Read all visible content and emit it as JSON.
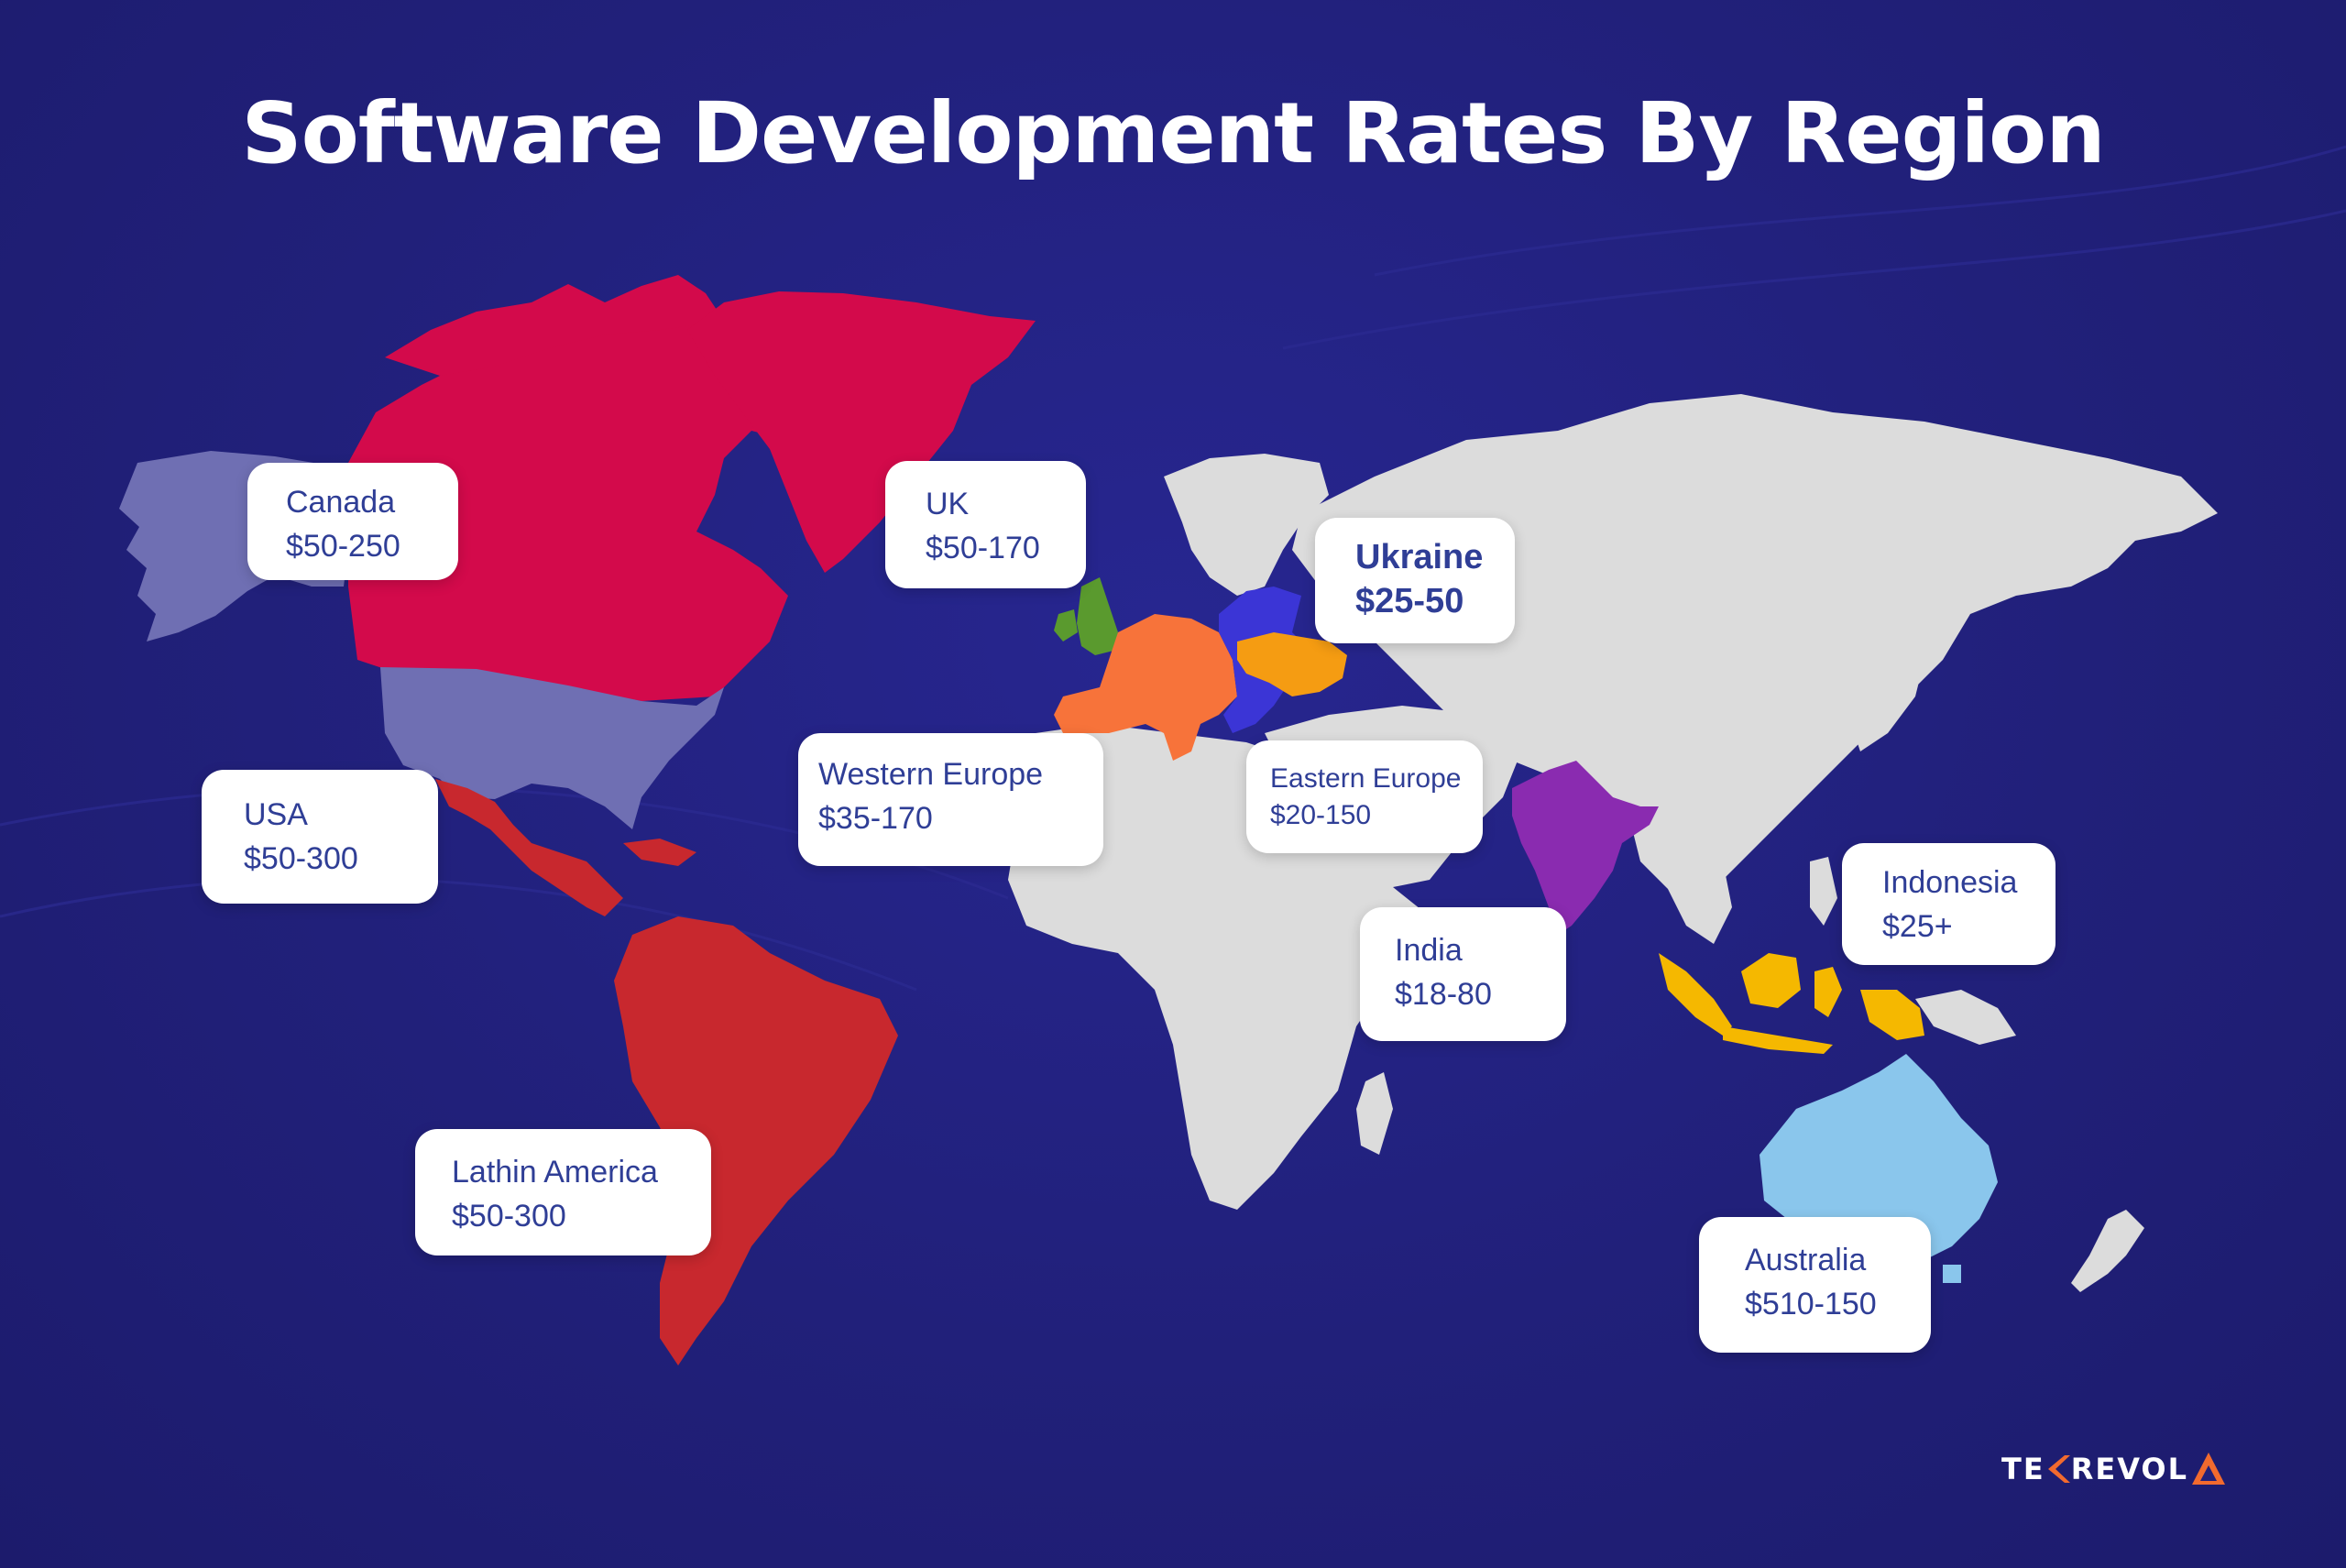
{
  "title": "Software Development Rates By Region",
  "regions": {
    "canada": {
      "name": "Canada",
      "rate": "$50-250",
      "color": "#d30a4b"
    },
    "usa": {
      "name": "USA",
      "rate": "$50-300",
      "color": "#6f6fb3"
    },
    "latin_america": {
      "name": "Lathin America",
      "rate": "$50-300",
      "color": "#c8282e"
    },
    "uk": {
      "name": "UK",
      "rate": "$50-170",
      "color": "#5a9a2e"
    },
    "western_europe": {
      "name": "Western Europe",
      "rate": "$35-170",
      "color": "#f7733a"
    },
    "eastern_europe": {
      "name": "Eastern Europe",
      "rate": "$20-150",
      "color": "#3b35d6"
    },
    "ukraine": {
      "name": "Ukraine",
      "rate": "$25-50",
      "color": "#f59c12"
    },
    "india": {
      "name": "India",
      "rate": "$18-80",
      "color": "#8a2bb0"
    },
    "indonesia": {
      "name": "Indonesia",
      "rate": "$25+",
      "color": "#f5b800"
    },
    "australia": {
      "name": "Australia",
      "rate": "$510-150",
      "color": "#8ac6ec"
    }
  },
  "other_land_color": "#dcdcdc",
  "logo": {
    "text_left": "TE",
    "text_right": "REVOL"
  }
}
